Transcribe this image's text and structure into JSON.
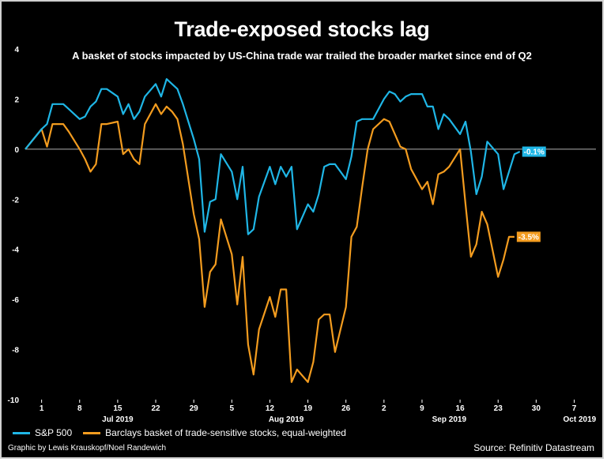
{
  "title": "Trade-exposed stocks lag",
  "subtitle": "A basket of stocks impacted by US-China trade war trailed the broader market since end of Q2",
  "credit": "Graphic by Lewis Krauskopf/Noel Randewich",
  "source": "Source: Refinitiv Datastream",
  "colors": {
    "sp500": "#1fb6e6",
    "basket": "#f39c1f",
    "zero_line": "#b0b0b0"
  },
  "chart_data": {
    "type": "line",
    "ylim": [
      -10,
      4
    ],
    "y_ticks": [
      "4",
      "2",
      "0",
      "-2",
      "-4",
      "-6",
      "-8",
      "-10"
    ],
    "y_tick_values": [
      4,
      2,
      0,
      -2,
      -4,
      -6,
      -8,
      -10
    ],
    "x_range": [
      "2019-06-28",
      "2019-10-11"
    ],
    "x_day_ticks": [
      {
        "date": "2019-07-01",
        "label": "1"
      },
      {
        "date": "2019-07-08",
        "label": "8"
      },
      {
        "date": "2019-07-15",
        "label": "15"
      },
      {
        "date": "2019-07-22",
        "label": "22"
      },
      {
        "date": "2019-07-29",
        "label": "29"
      },
      {
        "date": "2019-08-05",
        "label": "5"
      },
      {
        "date": "2019-08-12",
        "label": "12"
      },
      {
        "date": "2019-08-19",
        "label": "19"
      },
      {
        "date": "2019-08-26",
        "label": "26"
      },
      {
        "date": "2019-09-02",
        "label": "2"
      },
      {
        "date": "2019-09-09",
        "label": "9"
      },
      {
        "date": "2019-09-16",
        "label": "16"
      },
      {
        "date": "2019-09-23",
        "label": "23"
      },
      {
        "date": "2019-09-30",
        "label": "30"
      },
      {
        "date": "2019-10-07",
        "label": "7"
      }
    ],
    "x_month_labels": [
      {
        "date": "2019-07-15",
        "label": "Jul 2019"
      },
      {
        "date": "2019-08-15",
        "label": "Aug 2019"
      },
      {
        "date": "2019-09-14",
        "label": "Sep 2019"
      },
      {
        "date": "2019-10-08",
        "label": "Oct 2019"
      }
    ],
    "series": [
      {
        "name": "S&P 500",
        "end_label": "-0.1%",
        "points": [
          [
            "2019-06-28",
            0.0
          ],
          [
            "2019-07-01",
            0.8
          ],
          [
            "2019-07-02",
            1.0
          ],
          [
            "2019-07-03",
            1.8
          ],
          [
            "2019-07-05",
            1.8
          ],
          [
            "2019-07-06",
            1.6
          ],
          [
            "2019-07-08",
            1.2
          ],
          [
            "2019-07-09",
            1.3
          ],
          [
            "2019-07-10",
            1.7
          ],
          [
            "2019-07-11",
            1.9
          ],
          [
            "2019-07-12",
            2.4
          ],
          [
            "2019-07-13",
            2.4
          ],
          [
            "2019-07-15",
            2.1
          ],
          [
            "2019-07-16",
            1.4
          ],
          [
            "2019-07-17",
            1.8
          ],
          [
            "2019-07-18",
            1.2
          ],
          [
            "2019-07-19",
            1.5
          ],
          [
            "2019-07-20",
            2.1
          ],
          [
            "2019-07-22",
            2.6
          ],
          [
            "2019-07-23",
            2.1
          ],
          [
            "2019-07-24",
            2.8
          ],
          [
            "2019-07-25",
            2.6
          ],
          [
            "2019-07-26",
            2.4
          ],
          [
            "2019-07-27",
            1.8
          ],
          [
            "2019-07-29",
            0.4
          ],
          [
            "2019-07-30",
            -0.4
          ],
          [
            "2019-07-31",
            -3.3
          ],
          [
            "2019-08-01",
            -2.1
          ],
          [
            "2019-08-02",
            -2.0
          ],
          [
            "2019-08-03",
            -0.2
          ],
          [
            "2019-08-05",
            -0.9
          ],
          [
            "2019-08-06",
            -2.0
          ],
          [
            "2019-08-07",
            -0.7
          ],
          [
            "2019-08-08",
            -3.4
          ],
          [
            "2019-08-09",
            -3.2
          ],
          [
            "2019-08-10",
            -1.9
          ],
          [
            "2019-08-12",
            -0.7
          ],
          [
            "2019-08-13",
            -1.4
          ],
          [
            "2019-08-14",
            -0.7
          ],
          [
            "2019-08-15",
            -1.1
          ],
          [
            "2019-08-16",
            -0.7
          ],
          [
            "2019-08-17",
            -3.2
          ],
          [
            "2019-08-19",
            -2.2
          ],
          [
            "2019-08-20",
            -2.5
          ],
          [
            "2019-08-21",
            -1.8
          ],
          [
            "2019-08-22",
            -0.7
          ],
          [
            "2019-08-23",
            -0.6
          ],
          [
            "2019-08-24",
            -0.6
          ],
          [
            "2019-08-26",
            -1.2
          ],
          [
            "2019-08-27",
            -0.3
          ],
          [
            "2019-08-28",
            1.1
          ],
          [
            "2019-08-29",
            1.2
          ],
          [
            "2019-08-30",
            1.2
          ],
          [
            "2019-08-31",
            1.2
          ],
          [
            "2019-09-02",
            2.0
          ],
          [
            "2019-09-03",
            2.3
          ],
          [
            "2019-09-04",
            2.2
          ],
          [
            "2019-09-05",
            1.9
          ],
          [
            "2019-09-06",
            2.1
          ],
          [
            "2019-09-07",
            2.2
          ],
          [
            "2019-09-09",
            2.2
          ],
          [
            "2019-09-10",
            1.7
          ],
          [
            "2019-09-11",
            1.7
          ],
          [
            "2019-09-12",
            0.8
          ],
          [
            "2019-09-13",
            1.4
          ],
          [
            "2019-09-14",
            1.2
          ],
          [
            "2019-09-16",
            0.6
          ],
          [
            "2019-09-17",
            1.1
          ],
          [
            "2019-09-18",
            -0.1
          ],
          [
            "2019-09-19",
            -1.8
          ],
          [
            "2019-09-20",
            -1.1
          ],
          [
            "2019-09-21",
            0.3
          ],
          [
            "2019-09-23",
            -0.2
          ],
          [
            "2019-09-24",
            -1.6
          ],
          [
            "2019-09-25",
            -0.9
          ],
          [
            "2019-09-26",
            -0.2
          ],
          [
            "2019-09-27",
            -0.1
          ]
        ]
      },
      {
        "name": "Barclays basket of trade-sensitive stocks, equal-weighted",
        "end_label": "-3.5%",
        "points": [
          [
            "2019-06-28",
            0.0
          ],
          [
            "2019-07-01",
            0.8
          ],
          [
            "2019-07-02",
            0.1
          ],
          [
            "2019-07-03",
            1.0
          ],
          [
            "2019-07-05",
            1.0
          ],
          [
            "2019-07-06",
            0.7
          ],
          [
            "2019-07-08",
            0.0
          ],
          [
            "2019-07-09",
            -0.4
          ],
          [
            "2019-07-10",
            -0.9
          ],
          [
            "2019-07-11",
            -0.6
          ],
          [
            "2019-07-12",
            1.0
          ],
          [
            "2019-07-13",
            1.0
          ],
          [
            "2019-07-15",
            1.1
          ],
          [
            "2019-07-16",
            -0.2
          ],
          [
            "2019-07-17",
            0.0
          ],
          [
            "2019-07-18",
            -0.4
          ],
          [
            "2019-07-19",
            -0.6
          ],
          [
            "2019-07-20",
            1.0
          ],
          [
            "2019-07-22",
            1.8
          ],
          [
            "2019-07-23",
            1.4
          ],
          [
            "2019-07-24",
            1.7
          ],
          [
            "2019-07-25",
            1.5
          ],
          [
            "2019-07-26",
            1.2
          ],
          [
            "2019-07-27",
            0.2
          ],
          [
            "2019-07-29",
            -2.6
          ],
          [
            "2019-07-30",
            -3.6
          ],
          [
            "2019-07-31",
            -6.3
          ],
          [
            "2019-08-01",
            -4.9
          ],
          [
            "2019-08-02",
            -4.6
          ],
          [
            "2019-08-03",
            -2.8
          ],
          [
            "2019-08-05",
            -4.2
          ],
          [
            "2019-08-06",
            -6.2
          ],
          [
            "2019-08-07",
            -4.3
          ],
          [
            "2019-08-08",
            -7.8
          ],
          [
            "2019-08-09",
            -9.0
          ],
          [
            "2019-08-10",
            -7.2
          ],
          [
            "2019-08-12",
            -5.9
          ],
          [
            "2019-08-13",
            -6.7
          ],
          [
            "2019-08-14",
            -5.6
          ],
          [
            "2019-08-15",
            -5.6
          ],
          [
            "2019-08-16",
            -9.3
          ],
          [
            "2019-08-17",
            -8.8
          ],
          [
            "2019-08-19",
            -9.3
          ],
          [
            "2019-08-20",
            -8.5
          ],
          [
            "2019-08-21",
            -6.8
          ],
          [
            "2019-08-22",
            -6.6
          ],
          [
            "2019-08-23",
            -6.6
          ],
          [
            "2019-08-24",
            -8.1
          ],
          [
            "2019-08-26",
            -6.3
          ],
          [
            "2019-08-27",
            -3.5
          ],
          [
            "2019-08-28",
            -3.1
          ],
          [
            "2019-08-29",
            -1.5
          ],
          [
            "2019-08-30",
            0.0
          ],
          [
            "2019-08-31",
            0.8
          ],
          [
            "2019-09-02",
            1.2
          ],
          [
            "2019-09-03",
            1.1
          ],
          [
            "2019-09-04",
            0.6
          ],
          [
            "2019-09-05",
            0.1
          ],
          [
            "2019-09-06",
            0.0
          ],
          [
            "2019-09-07",
            -0.8
          ],
          [
            "2019-09-09",
            -1.6
          ],
          [
            "2019-09-10",
            -1.3
          ],
          [
            "2019-09-11",
            -2.2
          ],
          [
            "2019-09-12",
            -1.0
          ],
          [
            "2019-09-13",
            -0.9
          ],
          [
            "2019-09-14",
            -0.7
          ],
          [
            "2019-09-16",
            0.0
          ],
          [
            "2019-09-17",
            -2.2
          ],
          [
            "2019-09-18",
            -4.3
          ],
          [
            "2019-09-19",
            -3.8
          ],
          [
            "2019-09-20",
            -2.5
          ],
          [
            "2019-09-21",
            -3.0
          ],
          [
            "2019-09-23",
            -5.1
          ],
          [
            "2019-09-24",
            -4.4
          ],
          [
            "2019-09-25",
            -3.5
          ],
          [
            "2019-09-26",
            -3.5
          ]
        ]
      }
    ],
    "legend_position": "bottom-left",
    "grid": false
  }
}
